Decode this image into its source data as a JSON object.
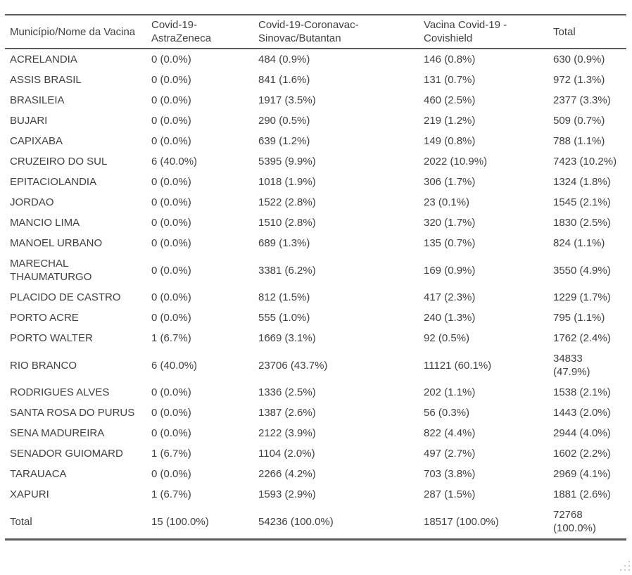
{
  "colors": {
    "text": "#404040",
    "border": "#5c5c5c",
    "grip_dot": "#c9c9c9",
    "background": "#ffffff"
  },
  "table": {
    "columns": [
      {
        "id": "municipality",
        "label": "Município/Nome da Vacina"
      },
      {
        "id": "astrazeneca",
        "label": "Covid-19-AstraZeneca"
      },
      {
        "id": "coronavac",
        "label": "Covid-19-Coronavac-Sinovac/Butantan"
      },
      {
        "id": "covishield",
        "label": "Vacina Covid-19 - Covishield"
      },
      {
        "id": "total",
        "label": "Total"
      }
    ],
    "rows": [
      [
        "ACRELANDIA",
        "0 (0.0%)",
        "484 (0.9%)",
        "146 (0.8%)",
        "630 (0.9%)"
      ],
      [
        "ASSIS BRASIL",
        "0 (0.0%)",
        "841 (1.6%)",
        "131 (0.7%)",
        "972 (1.3%)"
      ],
      [
        "BRASILEIA",
        "0 (0.0%)",
        "1917 (3.5%)",
        "460 (2.5%)",
        "2377 (3.3%)"
      ],
      [
        "BUJARI",
        "0 (0.0%)",
        "290 (0.5%)",
        "219 (1.2%)",
        "509 (0.7%)"
      ],
      [
        "CAPIXABA",
        "0 (0.0%)",
        "639 (1.2%)",
        "149 (0.8%)",
        "788 (1.1%)"
      ],
      [
        "CRUZEIRO DO SUL",
        "6 (40.0%)",
        "5395 (9.9%)",
        "2022 (10.9%)",
        "7423 (10.2%)"
      ],
      [
        "EPITACIOLANDIA",
        "0 (0.0%)",
        "1018 (1.9%)",
        "306 (1.7%)",
        "1324 (1.8%)"
      ],
      [
        "JORDAO",
        "0 (0.0%)",
        "1522 (2.8%)",
        "23 (0.1%)",
        "1545 (2.1%)"
      ],
      [
        "MANCIO LIMA",
        "0 (0.0%)",
        "1510 (2.8%)",
        "320 (1.7%)",
        "1830 (2.5%)"
      ],
      [
        "MANOEL URBANO",
        "0 (0.0%)",
        "689 (1.3%)",
        "135 (0.7%)",
        "824 (1.1%)"
      ],
      [
        "MARECHAL THAUMATURGO",
        "0 (0.0%)",
        "3381 (6.2%)",
        "169 (0.9%)",
        "3550 (4.9%)"
      ],
      [
        "PLACIDO DE CASTRO",
        "0 (0.0%)",
        "812 (1.5%)",
        "417 (2.3%)",
        "1229 (1.7%)"
      ],
      [
        "PORTO ACRE",
        "0 (0.0%)",
        "555 (1.0%)",
        "240 (1.3%)",
        "795 (1.1%)"
      ],
      [
        "PORTO WALTER",
        "1 (6.7%)",
        "1669 (3.1%)",
        "92 (0.5%)",
        "1762 (2.4%)"
      ],
      [
        "RIO BRANCO",
        "6 (40.0%)",
        "23706 (43.7%)",
        "11121 (60.1%)",
        "34833 (47.9%)"
      ],
      [
        "RODRIGUES ALVES",
        "0 (0.0%)",
        "1336 (2.5%)",
        "202 (1.1%)",
        "1538 (2.1%)"
      ],
      [
        "SANTA ROSA DO PURUS",
        "0 (0.0%)",
        "1387 (2.6%)",
        "56 (0.3%)",
        "1443 (2.0%)"
      ],
      [
        "SENA MADUREIRA",
        "0 (0.0%)",
        "2122 (3.9%)",
        "822 (4.4%)",
        "2944 (4.0%)"
      ],
      [
        "SENADOR GUIOMARD",
        "1 (6.7%)",
        "1104 (2.0%)",
        "497 (2.7%)",
        "1602 (2.2%)"
      ],
      [
        "TARAUACA",
        "0 (0.0%)",
        "2266 (4.2%)",
        "703 (3.8%)",
        "2969 (4.1%)"
      ],
      [
        "XAPURI",
        "1 (6.7%)",
        "1593 (2.9%)",
        "287 (1.5%)",
        "1881 (2.6%)"
      ]
    ],
    "total_row": [
      "Total",
      "15 (100.0%)",
      "54236 (100.0%)",
      "18517 (100.0%)",
      "72768 (100.0%)"
    ]
  }
}
